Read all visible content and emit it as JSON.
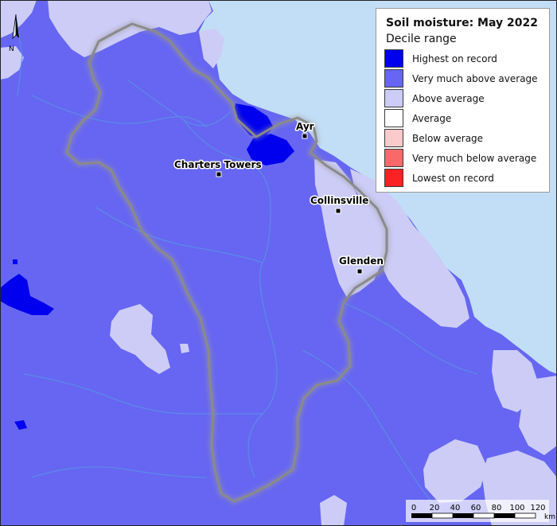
{
  "legend": {
    "title": "Soil moisture: May 2022",
    "subtitle": "Decile range",
    "items": [
      {
        "label": "Highest on record",
        "color": "#0000ee"
      },
      {
        "label": "Very much above average",
        "color": "#6666f2"
      },
      {
        "label": "Above average",
        "color": "#ccccf7"
      },
      {
        "label": "Average",
        "color": "#ffffff"
      },
      {
        "label": "Below average",
        "color": "#fbcaca"
      },
      {
        "label": "Very much below average",
        "color": "#f86a6a"
      },
      {
        "label": "Lowest on record",
        "color": "#fa2222"
      }
    ]
  },
  "places": [
    {
      "name": "Ayr"
    },
    {
      "name": "Charters Towers"
    },
    {
      "name": "Collinsville"
    },
    {
      "name": "Glenden"
    }
  ],
  "north_arrow": {
    "label": "N"
  },
  "scale_bar": {
    "ticks": [
      "0",
      "20",
      "40",
      "60",
      "80",
      "100",
      "120"
    ],
    "unit": "km"
  },
  "colors": {
    "sea": "#c2def6",
    "land_base": "#6666f2",
    "rivers": "#5b8ee6",
    "boundary": "#8a8a8a"
  }
}
